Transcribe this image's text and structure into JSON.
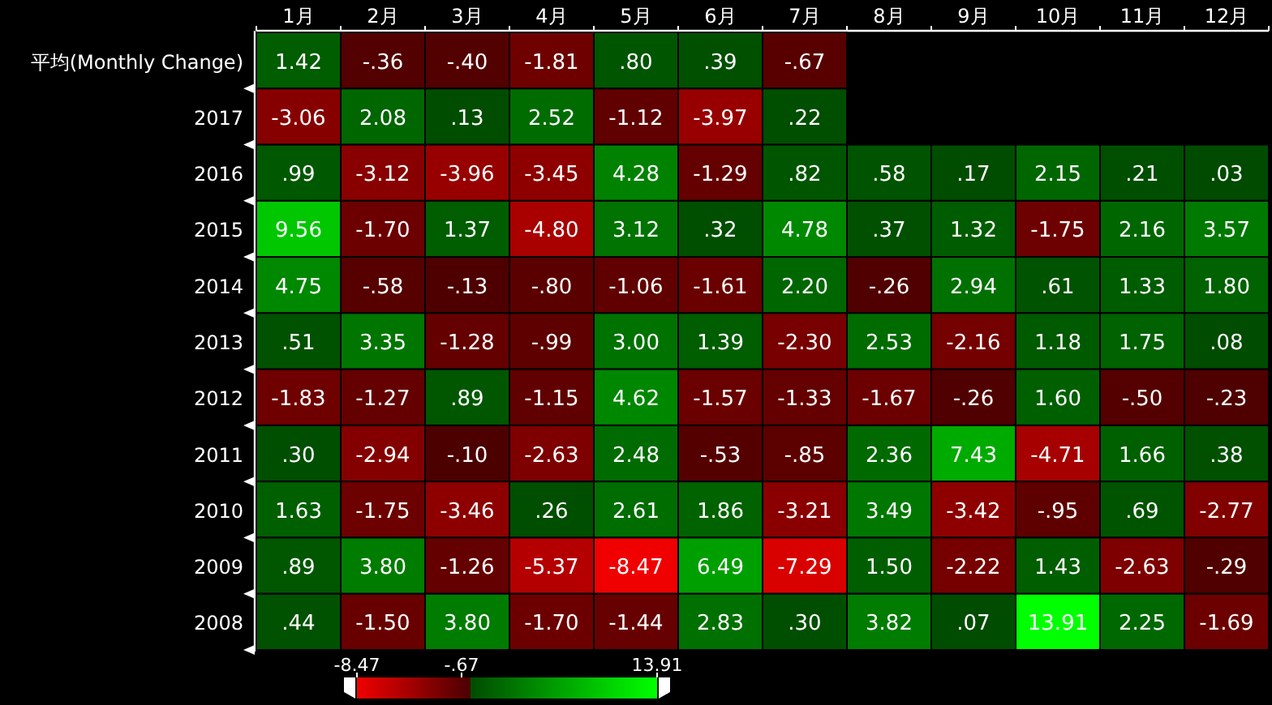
{
  "chart_data": {
    "type": "heatmap",
    "categories": [
      "1月",
      "2月",
      "3月",
      "4月",
      "5月",
      "6月",
      "7月",
      "8月",
      "9月",
      "10月",
      "11月",
      "12月"
    ],
    "y_categories": [
      "平均(Monthly Change)",
      "2017",
      "2016",
      "2015",
      "2014",
      "2013",
      "2012",
      "2011",
      "2010",
      "2009",
      "2008"
    ],
    "cells": [
      [
        1.42,
        -0.36,
        -0.4,
        -1.81,
        0.8,
        0.39,
        -0.67,
        null,
        null,
        null,
        null,
        null
      ],
      [
        -3.06,
        2.08,
        0.13,
        2.52,
        -1.12,
        -3.97,
        0.22,
        null,
        null,
        null,
        null,
        null
      ],
      [
        0.99,
        -3.12,
        -3.96,
        -3.45,
        4.28,
        -1.29,
        0.82,
        0.58,
        0.17,
        2.15,
        0.21,
        0.03
      ],
      [
        9.56,
        -1.7,
        1.37,
        -4.8,
        3.12,
        0.32,
        4.78,
        0.37,
        1.32,
        -1.75,
        2.16,
        3.57
      ],
      [
        4.75,
        -0.58,
        -0.13,
        -0.8,
        -1.06,
        -1.61,
        2.2,
        -0.26,
        2.94,
        0.61,
        1.33,
        1.8
      ],
      [
        0.51,
        3.35,
        -1.28,
        -0.99,
        3.0,
        1.39,
        -2.3,
        2.53,
        -2.16,
        1.18,
        1.75,
        0.08
      ],
      [
        -1.83,
        -1.27,
        0.89,
        -1.15,
        4.62,
        -1.57,
        -1.33,
        -1.67,
        -0.26,
        1.6,
        -0.5,
        -0.23
      ],
      [
        0.3,
        -2.94,
        -0.1,
        -2.63,
        2.48,
        -0.53,
        -0.85,
        2.36,
        7.43,
        -4.71,
        1.66,
        0.38
      ],
      [
        1.63,
        -1.75,
        -3.46,
        0.26,
        2.61,
        1.86,
        -3.21,
        3.49,
        -3.42,
        -0.95,
        0.69,
        -2.77
      ],
      [
        0.89,
        3.8,
        -1.26,
        -5.37,
        -8.47,
        6.49,
        -7.29,
        1.5,
        -2.22,
        1.43,
        -2.63,
        -0.29
      ],
      [
        0.44,
        -1.5,
        3.8,
        -1.7,
        -1.44,
        2.83,
        0.3,
        3.82,
        0.07,
        13.91,
        2.25,
        -1.69
      ]
    ],
    "cell_labels": [
      [
        "1.42",
        "-.36",
        "-.40",
        "-1.81",
        ".80",
        ".39",
        "-.67",
        null,
        null,
        null,
        null,
        null
      ],
      [
        "-3.06",
        "2.08",
        ".13",
        "2.52",
        "-1.12",
        "-3.97",
        ".22",
        null,
        null,
        null,
        null,
        null
      ],
      [
        ".99",
        "-3.12",
        "-3.96",
        "-3.45",
        "4.28",
        "-1.29",
        ".82",
        ".58",
        ".17",
        "2.15",
        ".21",
        ".03"
      ],
      [
        "9.56",
        "-1.70",
        "1.37",
        "-4.80",
        "3.12",
        ".32",
        "4.78",
        ".37",
        "1.32",
        "-1.75",
        "2.16",
        "3.57"
      ],
      [
        "4.75",
        "-.58",
        "-.13",
        "-.80",
        "-1.06",
        "-1.61",
        "2.20",
        "-.26",
        "2.94",
        ".61",
        "1.33",
        "1.80"
      ],
      [
        ".51",
        "3.35",
        "-1.28",
        "-.99",
        "3.00",
        "1.39",
        "-2.30",
        "2.53",
        "-2.16",
        "1.18",
        "1.75",
        ".08"
      ],
      [
        "-1.83",
        "-1.27",
        ".89",
        "-1.15",
        "4.62",
        "-1.57",
        "-1.33",
        "-1.67",
        "-.26",
        "1.60",
        "-.50",
        "-.23"
      ],
      [
        ".30",
        "-2.94",
        "-.10",
        "-2.63",
        "2.48",
        "-.53",
        "-.85",
        "2.36",
        "7.43",
        "-4.71",
        "1.66",
        ".38"
      ],
      [
        "1.63",
        "-1.75",
        "-3.46",
        ".26",
        "2.61",
        "1.86",
        "-3.21",
        "3.49",
        "-3.42",
        "-.95",
        ".69",
        "-2.77"
      ],
      [
        ".89",
        "3.80",
        "-1.26",
        "-5.37",
        "-8.47",
        "6.49",
        "-7.29",
        "1.50",
        "-2.22",
        "1.43",
        "-2.63",
        "-.29"
      ],
      [
        ".44",
        "-1.50",
        "3.80",
        "-1.70",
        "-1.44",
        "2.83",
        ".30",
        "3.82",
        ".07",
        "13.91",
        "2.25",
        "-1.69"
      ]
    ],
    "cticks": [
      -8.47,
      {
        "value": -0.67,
        "label": "-.67"
      },
      13.91
    ]
  }
}
